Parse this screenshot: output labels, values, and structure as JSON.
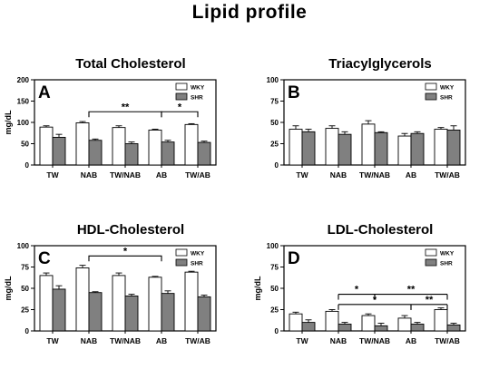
{
  "page": {
    "title": "Lipid profile"
  },
  "chart_data": [
    {
      "type": "bar",
      "panel": "A",
      "title": "Total Cholesterol",
      "ylabel": "mg/dL",
      "ylim": [
        0,
        200
      ],
      "yticks": [
        0,
        50,
        100,
        150,
        200
      ],
      "categories": [
        "TW",
        "NAB",
        "TW/NAB",
        "AB",
        "TW/AB"
      ],
      "legend": [
        "WKY",
        "SHR"
      ],
      "legend_position": "top-right",
      "series": [
        {
          "name": "WKY",
          "values": [
            89,
            99,
            88,
            82,
            95
          ],
          "errors": [
            3,
            3,
            4,
            2,
            2
          ]
        },
        {
          "name": "SHR",
          "values": [
            65,
            58,
            50,
            54,
            53
          ],
          "errors": [
            7,
            3,
            4,
            4,
            3
          ]
        }
      ],
      "annotations": [
        {
          "from": "NAB",
          "to": "AB",
          "label": "**"
        },
        {
          "from": "AB",
          "to": "TW/AB",
          "label": "*"
        }
      ]
    },
    {
      "type": "bar",
      "panel": "B",
      "title": "Triacylglycerols",
      "ylabel": "",
      "ylim": [
        0,
        100
      ],
      "yticks": [
        0,
        25,
        50,
        75,
        100
      ],
      "categories": [
        "TW",
        "NAB",
        "TW/NAB",
        "AB",
        "TW/AB"
      ],
      "legend": [
        "WKY",
        "SHR"
      ],
      "legend_position": "top-right",
      "series": [
        {
          "name": "WKY",
          "values": [
            42,
            43,
            48,
            34,
            42
          ],
          "errors": [
            4,
            3,
            4,
            3,
            2
          ]
        },
        {
          "name": "SHR",
          "values": [
            39,
            36,
            38,
            37,
            41
          ],
          "errors": [
            3,
            3,
            1,
            2,
            5
          ]
        }
      ],
      "annotations": []
    },
    {
      "type": "bar",
      "panel": "C",
      "title": "HDL-Cholesterol",
      "ylabel": "mg/dL",
      "ylim": [
        0,
        100
      ],
      "yticks": [
        0,
        25,
        50,
        75,
        100
      ],
      "categories": [
        "TW",
        "NAB",
        "TW/NAB",
        "AB",
        "TW/AB"
      ],
      "legend": [
        "WKY",
        "SHR"
      ],
      "legend_position": "top-right",
      "series": [
        {
          "name": "WKY",
          "values": [
            65,
            74,
            65,
            63,
            69
          ],
          "errors": [
            3,
            3,
            3,
            1,
            1
          ]
        },
        {
          "name": "SHR",
          "values": [
            49,
            45,
            41,
            44,
            40
          ],
          "errors": [
            4,
            1,
            2,
            3,
            2
          ]
        }
      ],
      "annotations": [
        {
          "from": "NAB",
          "to": "AB",
          "label": "*"
        }
      ]
    },
    {
      "type": "bar",
      "panel": "D",
      "title": "LDL-Cholesterol",
      "ylabel": "mg/dL",
      "ylim": [
        0,
        100
      ],
      "yticks": [
        0,
        25,
        50,
        75,
        100
      ],
      "categories": [
        "TW",
        "NAB",
        "TW/NAB",
        "AB",
        "TW/AB"
      ],
      "legend": [
        "WKY",
        "SHR"
      ],
      "legend_position": "top-right",
      "series": [
        {
          "name": "WKY",
          "values": [
            20,
            23,
            18,
            15,
            25
          ],
          "errors": [
            2,
            2,
            2,
            3,
            2
          ]
        },
        {
          "name": "SHR",
          "values": [
            10,
            8,
            6,
            8,
            7
          ],
          "errors": [
            3,
            2,
            3,
            2,
            2
          ]
        }
      ],
      "annotations": [
        {
          "from": "NAB",
          "to": "TW/AB",
          "label": "* **",
          "labels": [
            "*",
            "**"
          ]
        },
        {
          "from": "NAB",
          "to": "TW/AB",
          "label": "* **",
          "labels": [
            "*",
            "**"
          ]
        }
      ]
    }
  ]
}
